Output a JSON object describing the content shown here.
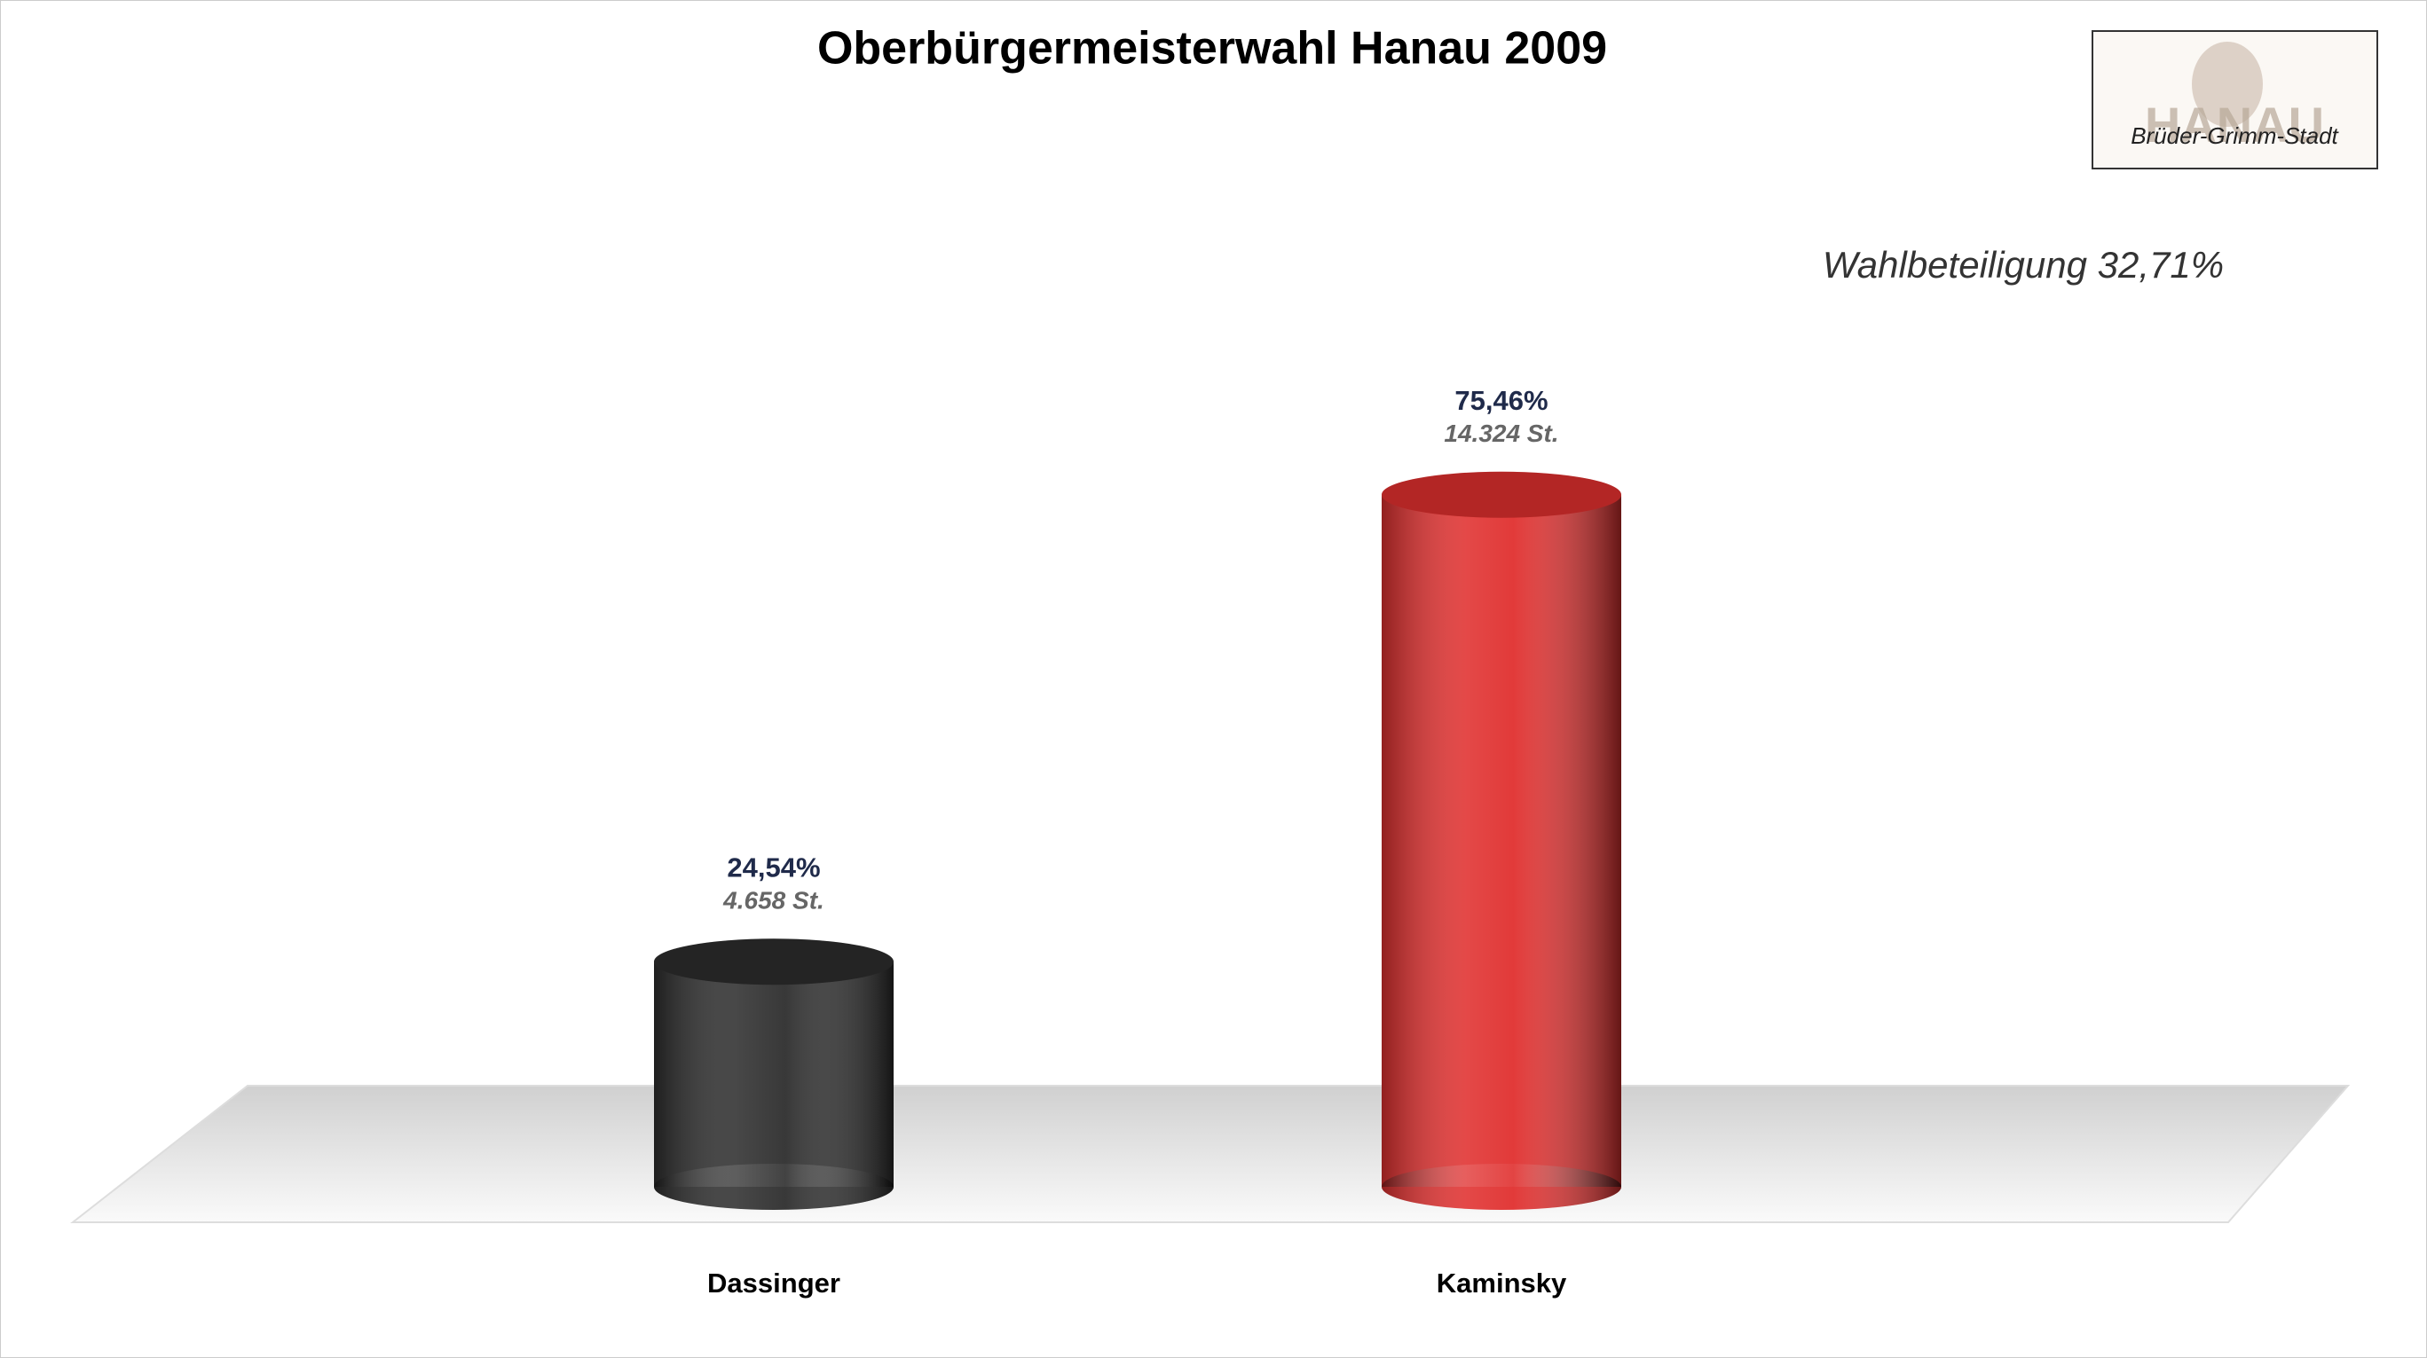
{
  "chart_data": {
    "type": "bar",
    "title": "Oberbürgermeisterwahl Hanau 2009",
    "annotation": "Wahlbeteiligung 32,71%",
    "logo": {
      "title": "HANAU",
      "subtitle": "Brüder-Grimm-Stadt"
    },
    "categories": [
      "Dassinger",
      "Kaminsky"
    ],
    "values": [
      24.54,
      75.46
    ],
    "value_labels": [
      "24,54%",
      "75,46%"
    ],
    "vote_labels": [
      "4.658 St.",
      "14.324 St."
    ],
    "colors": [
      "#2e2e2e",
      "#e0302f"
    ],
    "ylim": [
      0,
      100
    ]
  }
}
